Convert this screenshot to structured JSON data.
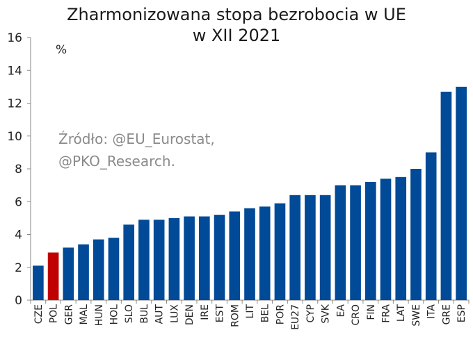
{
  "chart_data": {
    "type": "bar",
    "title_lines": [
      "Zharmonizowana stopa bezrobocia w UE",
      "w XII 2021"
    ],
    "unit": "%",
    "source_lines": [
      "Źródło: @EU_Eurostat,",
      "@PKO_Research."
    ],
    "categories": [
      "CZE",
      "POL",
      "GER",
      "MAL",
      "HUN",
      "HOL",
      "SLO",
      "BUL",
      "AUT",
      "LUX",
      "DEN",
      "IRE",
      "EST",
      "ROM",
      "LIT",
      "BEL",
      "POR",
      "EU27",
      "CYP",
      "SVK",
      "EA",
      "CRO",
      "FIN",
      "FRA",
      "LAT",
      "SWE",
      "ITA",
      "GRE",
      "ESP"
    ],
    "values": [
      2.1,
      2.9,
      3.2,
      3.4,
      3.7,
      3.8,
      4.6,
      4.9,
      4.9,
      5.0,
      5.1,
      5.1,
      5.2,
      5.4,
      5.6,
      5.7,
      5.9,
      6.4,
      6.4,
      6.4,
      7.0,
      7.0,
      7.2,
      7.4,
      7.5,
      8.0,
      9.0,
      12.7,
      13.0
    ],
    "highlight_category": "POL",
    "colors": {
      "bar": "#004a97",
      "highlight": "#c00000",
      "axis": "#888888"
    },
    "ylim": [
      0,
      16
    ],
    "yticks": [
      0,
      2,
      4,
      6,
      8,
      10,
      12,
      14,
      16
    ],
    "grid": false
  }
}
